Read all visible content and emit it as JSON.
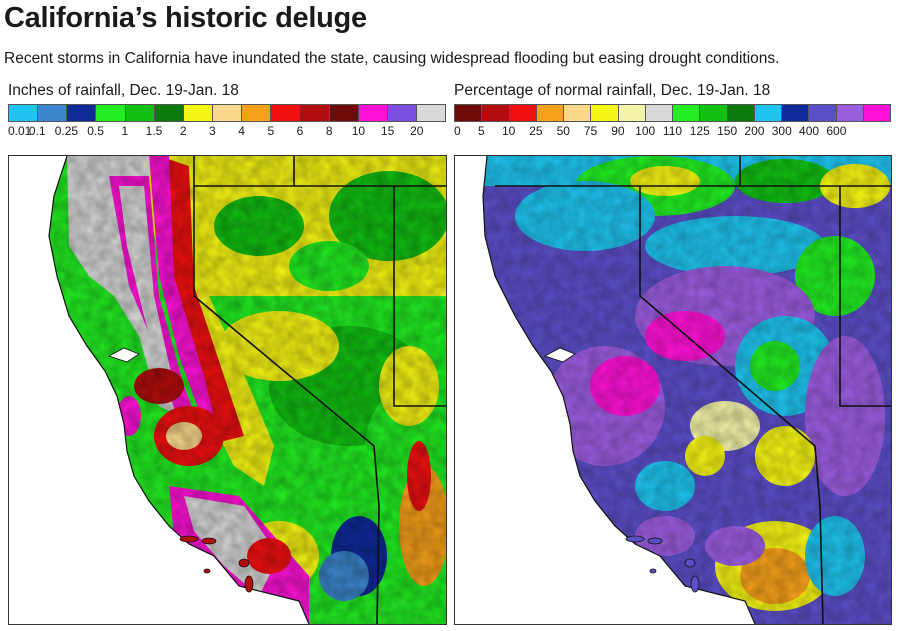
{
  "title": "California’s historic deluge",
  "subtitle": "Recent storms in California have inundated the state, causing widespread flooding but easing drought conditions.",
  "left_legend": {
    "title": "Inches of rainfall, Dec. 19-Jan. 18",
    "colors": [
      "#1fc4f0",
      "#3b86cc",
      "#102a99",
      "#22ee22",
      "#12c012",
      "#0a7a0a",
      "#f6f614",
      "#fbd98c",
      "#f7a11a",
      "#f01010",
      "#b30d0d",
      "#6e0a0a",
      "#ff12d6",
      "#7a4fdd",
      "#d9d9d9"
    ],
    "ticks": [
      "0.01",
      "0.1",
      "0.25",
      "0.5",
      "1",
      "1.5",
      "2",
      "3",
      "4",
      "5",
      "6",
      "8",
      "10",
      "15",
      "20"
    ]
  },
  "right_legend": {
    "title": "Percentage of normal rainfall, Dec. 19-Jan. 18",
    "colors": [
      "#6e0a0a",
      "#b30d0d",
      "#f01010",
      "#f7a11a",
      "#fbd98c",
      "#f6f614",
      "#f3f4a8",
      "#d9d9d9",
      "#22ee22",
      "#12c012",
      "#0a7a0a",
      "#1fc4f0",
      "#102a99",
      "#5b4fc8",
      "#9b5de0",
      "#ff12d6"
    ],
    "ticks": [
      "0",
      "5",
      "10",
      "25",
      "50",
      "75",
      "90",
      "100",
      "110",
      "125",
      "150",
      "200",
      "300",
      "400",
      "600"
    ]
  }
}
